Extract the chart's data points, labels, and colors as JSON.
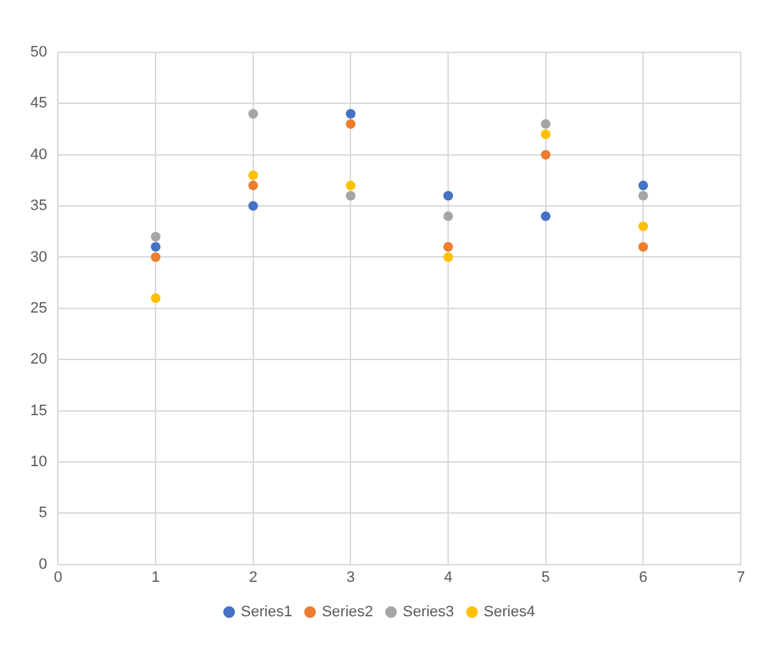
{
  "chart_data": {
    "type": "scatter",
    "x": [
      1,
      2,
      3,
      4,
      5,
      6
    ],
    "series": [
      {
        "name": "Series1",
        "color": "#4472c4",
        "values": [
          31,
          35,
          44,
          36,
          34,
          37
        ]
      },
      {
        "name": "Series2",
        "color": "#ed7d31",
        "values": [
          30,
          37,
          43,
          31,
          40,
          31
        ]
      },
      {
        "name": "Series3",
        "color": "#a5a5a5",
        "values": [
          32,
          44,
          36,
          34,
          43,
          36
        ]
      },
      {
        "name": "Series4",
        "color": "#ffc000",
        "values": [
          26,
          38,
          37,
          30,
          42,
          33
        ]
      }
    ],
    "xlim": [
      0,
      7
    ],
    "xticks": [
      0,
      1,
      2,
      3,
      4,
      5,
      6,
      7
    ],
    "ylim": [
      0,
      50
    ],
    "yticks": [
      0,
      5,
      10,
      15,
      20,
      25,
      30,
      35,
      40,
      45,
      50
    ],
    "grid": true,
    "legend": "bottom",
    "marker": "circle"
  }
}
